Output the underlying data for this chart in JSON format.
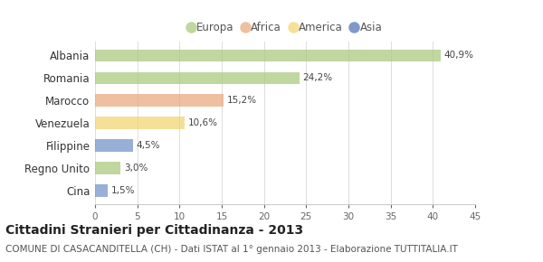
{
  "categories": [
    "Albania",
    "Romania",
    "Marocco",
    "Venezuela",
    "Filippine",
    "Regno Unito",
    "Cina"
  ],
  "values": [
    40.9,
    24.2,
    15.2,
    10.6,
    4.5,
    3.0,
    1.5
  ],
  "labels": [
    "40,9%",
    "24,2%",
    "15,2%",
    "10,6%",
    "4,5%",
    "3,0%",
    "1,5%"
  ],
  "colors": [
    "#a8c87a",
    "#a8c87a",
    "#e8a87a",
    "#f0d470",
    "#7090c8",
    "#a8c87a",
    "#7090c8"
  ],
  "legend_labels": [
    "Europa",
    "Africa",
    "America",
    "Asia"
  ],
  "legend_colors": [
    "#a8c87a",
    "#e8a87a",
    "#f0d470",
    "#5070b8"
  ],
  "xlim": [
    0,
    45
  ],
  "xticks": [
    0,
    5,
    10,
    15,
    20,
    25,
    30,
    35,
    40,
    45
  ],
  "title": "Cittadini Stranieri per Cittadinanza - 2013",
  "subtitle": "COMUNE DI CASACANDITELLA (CH) - Dati ISTAT al 1° gennaio 2013 - Elaborazione TUTTITALIA.IT",
  "bg_color": "#ffffff",
  "bar_alpha": 0.72,
  "title_fontsize": 10,
  "subtitle_fontsize": 7.5,
  "label_fontsize": 7.5,
  "ytick_fontsize": 8.5,
  "xtick_fontsize": 7.5,
  "legend_fontsize": 8.5
}
